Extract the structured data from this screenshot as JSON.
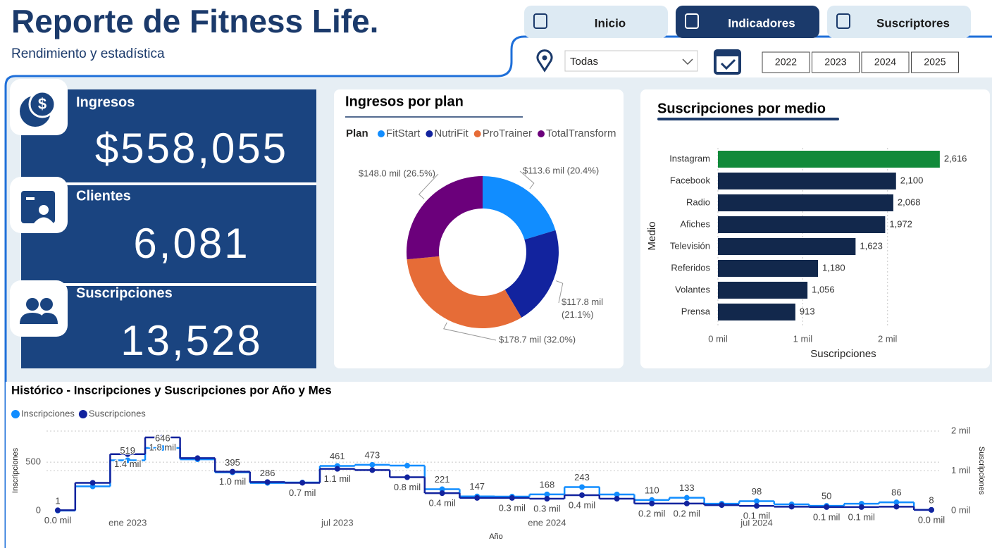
{
  "header": {
    "title": "Reporte de Fitness Life.",
    "subtitle": "Rendimiento y estadística"
  },
  "nav": {
    "tabs": [
      "Inicio",
      "Indicadores",
      "Suscriptores"
    ],
    "active_tab": 1
  },
  "filters": {
    "location": "Todas",
    "years": [
      "2022",
      "2023",
      "2024",
      "2025"
    ]
  },
  "kpis": [
    {
      "label": "Ingresos",
      "value": "$558,055"
    },
    {
      "label": "Clientes",
      "value": "6,081"
    },
    {
      "label": "Suscripciones",
      "value": "13,528"
    }
  ],
  "chart_data": [
    {
      "type": "pie",
      "title": "Ingresos por plan",
      "legend_title": "Plan",
      "categories": [
        "FitStart",
        "NutriFit",
        "ProTrainer",
        "TotalTransform"
      ],
      "values": [
        113.6,
        117.8,
        178.7,
        148.0
      ],
      "value_labels": [
        "$113.6 mil (20.4%)",
        "$117.8 mil (21.1%)",
        "$178.7 mil (32.0%)",
        "$148.0 mil (26.5%)"
      ],
      "colors": [
        "#118DFF",
        "#12239E",
        "#E66C37",
        "#6B007B"
      ]
    },
    {
      "type": "bar",
      "orientation": "horizontal",
      "title": "Suscripciones por medio",
      "xlabel": "Suscripciones",
      "ylabel": "Medio",
      "categories": [
        "Instagram",
        "Facebook",
        "Radio",
        "Afiches",
        "Televisión",
        "Referidos",
        "Volantes",
        "Prensa"
      ],
      "values": [
        2616,
        2100,
        2068,
        1972,
        1623,
        1180,
        1056,
        913
      ],
      "value_labels": [
        "2,616",
        "2,100",
        "2,068",
        "1,972",
        "1,623",
        "1,180",
        "1,056",
        "913"
      ],
      "colors": [
        "#118A3A",
        "#12284C",
        "#12284C",
        "#12284C",
        "#12284C",
        "#12284C",
        "#12284C",
        "#12284C"
      ],
      "xlim": [
        0,
        2700
      ],
      "xticks": [
        {
          "value": 0,
          "label": "0 mil"
        },
        {
          "value": 1000,
          "label": "1 mil"
        },
        {
          "value": 2000,
          "label": "2 mil"
        }
      ],
      "grid": true
    },
    {
      "type": "step",
      "title": "Histórico - Inscripciones y Suscripciones por Año y Mes",
      "xlabel": "Año",
      "ylabel": "Inscripciones",
      "y2label": "Suscripciones",
      "x": [
        "2022-11",
        "2022-12",
        "2023-01",
        "2023-02",
        "2023-03",
        "2023-04",
        "2023-05",
        "2023-06",
        "2023-07",
        "2023-08",
        "2023-09",
        "2023-10",
        "2023-11",
        "2023-12",
        "2024-01",
        "2024-02",
        "2024-03",
        "2024-04",
        "2024-05",
        "2024-06",
        "2024-07",
        "2024-08",
        "2024-09",
        "2024-10",
        "2024-11",
        "2024-12"
      ],
      "xticks": [
        {
          "value": "2023-01",
          "label": "ene 2023"
        },
        {
          "value": "2023-07",
          "label": "jul 2023"
        },
        {
          "value": "2024-01",
          "label": "ene 2024"
        },
        {
          "value": "2024-07",
          "label": "jul 2024"
        }
      ],
      "ylim": [
        0,
        820
      ],
      "yticks": [
        0,
        500
      ],
      "y2lim": [
        0,
        2000
      ],
      "y2ticks": [
        {
          "value": 0,
          "label": "0 mil"
        },
        {
          "value": 1000,
          "label": "1 mil"
        },
        {
          "value": 2000,
          "label": "2 mil"
        }
      ],
      "grid": true,
      "series": [
        {
          "name": "Inscripciones",
          "color": "#118DFF",
          "axis": "y",
          "values": [
            1,
            250,
            519,
            646,
            529,
            395,
            286,
            290,
            461,
            473,
            464,
            221,
            147,
            145,
            168,
            243,
            167,
            110,
            133,
            72,
            98,
            65,
            50,
            72,
            86,
            8
          ],
          "value_labels": [
            "1",
            null,
            "519",
            "646",
            null,
            "395",
            "286",
            null,
            "461",
            "473",
            null,
            "221",
            "147",
            null,
            "168",
            "243",
            null,
            "110",
            "133",
            null,
            "98",
            null,
            "50",
            null,
            "86",
            "8"
          ]
        },
        {
          "name": "Suscripciones",
          "color": "#12239E",
          "axis": "y2",
          "values": [
            10,
            700,
            1420,
            1840,
            1320,
            980,
            720,
            700,
            1050,
            1020,
            840,
            440,
            320,
            320,
            300,
            390,
            300,
            180,
            180,
            140,
            120,
            100,
            90,
            90,
            100,
            20
          ],
          "value_labels": [
            "0.0 mil",
            null,
            "1.4 mil",
            "1.8 mil",
            null,
            "1.0 mil",
            null,
            "0.7 mil",
            "1.1 mil",
            null,
            "0.8 mil",
            "0.4 mil",
            null,
            "0.3 mil",
            "0.3 mil",
            "0.4 mil",
            null,
            "0.2 mil",
            "0.2 mil",
            null,
            "0.1 mil",
            null,
            "0.1 mil",
            "0.1 mil",
            null,
            "0.0 mil"
          ]
        }
      ]
    }
  ]
}
